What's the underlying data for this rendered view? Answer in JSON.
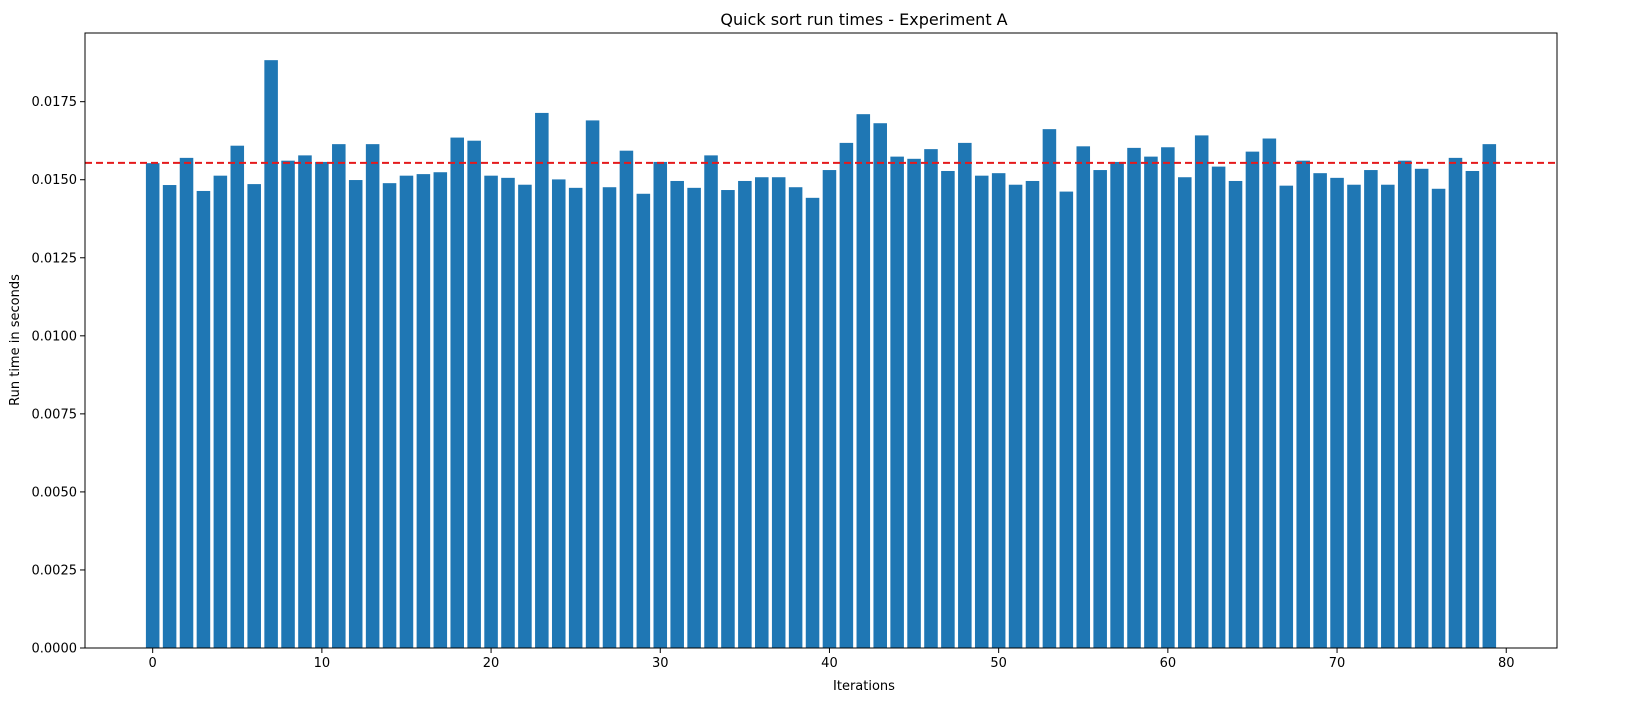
{
  "chart_data": {
    "type": "bar",
    "title": "Quick sort run times - Experiment A",
    "xlabel": "Iterations",
    "ylabel": "Run time in seconds",
    "x": [
      0,
      1,
      2,
      3,
      4,
      5,
      6,
      7,
      8,
      9,
      10,
      11,
      12,
      13,
      14,
      15,
      16,
      17,
      18,
      19,
      20,
      21,
      22,
      23,
      24,
      25,
      26,
      27,
      28,
      29,
      30,
      31,
      32,
      33,
      34,
      35,
      36,
      37,
      38,
      39,
      40,
      41,
      42,
      43,
      44,
      45,
      46,
      47,
      48,
      49,
      50,
      51,
      52,
      53,
      54,
      55,
      56,
      57,
      58,
      59,
      60,
      61,
      62,
      63,
      64,
      65,
      66,
      67,
      68,
      69,
      70,
      71,
      72,
      73,
      74,
      75,
      76,
      77,
      78,
      79
    ],
    "values": [
      0.01553,
      0.01483,
      0.0157,
      0.01464,
      0.01513,
      0.01609,
      0.01486,
      0.01883,
      0.01561,
      0.01578,
      0.01557,
      0.01614,
      0.01499,
      0.01614,
      0.01489,
      0.01513,
      0.01518,
      0.01524,
      0.01635,
      0.01625,
      0.01513,
      0.01506,
      0.01484,
      0.01714,
      0.01501,
      0.01474,
      0.0169,
      0.01476,
      0.01593,
      0.01455,
      0.01557,
      0.01496,
      0.01474,
      0.01578,
      0.01467,
      0.01496,
      0.01508,
      0.01508,
      0.01476,
      0.01442,
      0.01531,
      0.01618,
      0.0171,
      0.01681,
      0.01574,
      0.01567,
      0.01598,
      0.01528,
      0.01618,
      0.01513,
      0.01521,
      0.01484,
      0.01496,
      0.01662,
      0.01462,
      0.01607,
      0.01531,
      0.01557,
      0.01602,
      0.01574,
      0.01604,
      0.01508,
      0.01642,
      0.01542,
      0.01496,
      0.0159,
      0.01632,
      0.01481,
      0.01561,
      0.01521,
      0.01506,
      0.01484,
      0.01531,
      0.01484,
      0.01561,
      0.01535,
      0.01471,
      0.0157,
      0.01528,
      0.01614
    ],
    "mean_line": 0.01554,
    "xlim": [
      -4,
      83
    ],
    "ylim": [
      0,
      0.0197
    ],
    "xticks": [
      0,
      10,
      20,
      30,
      40,
      50,
      60,
      70,
      80
    ],
    "xtick_labels": [
      "0",
      "10",
      "20",
      "30",
      "40",
      "50",
      "60",
      "70",
      "80"
    ],
    "yticks": [
      0,
      0.0025,
      0.005,
      0.0075,
      0.01,
      0.0125,
      0.015,
      0.0175
    ],
    "ytick_labels": [
      "0.0000",
      "0.0025",
      "0.0050",
      "0.0075",
      "0.0100",
      "0.0125",
      "0.0150",
      "0.0175"
    ],
    "bar_color": "#1f77b4",
    "mean_line_color": "#e41a1c",
    "grid": false,
    "legend": false
  }
}
